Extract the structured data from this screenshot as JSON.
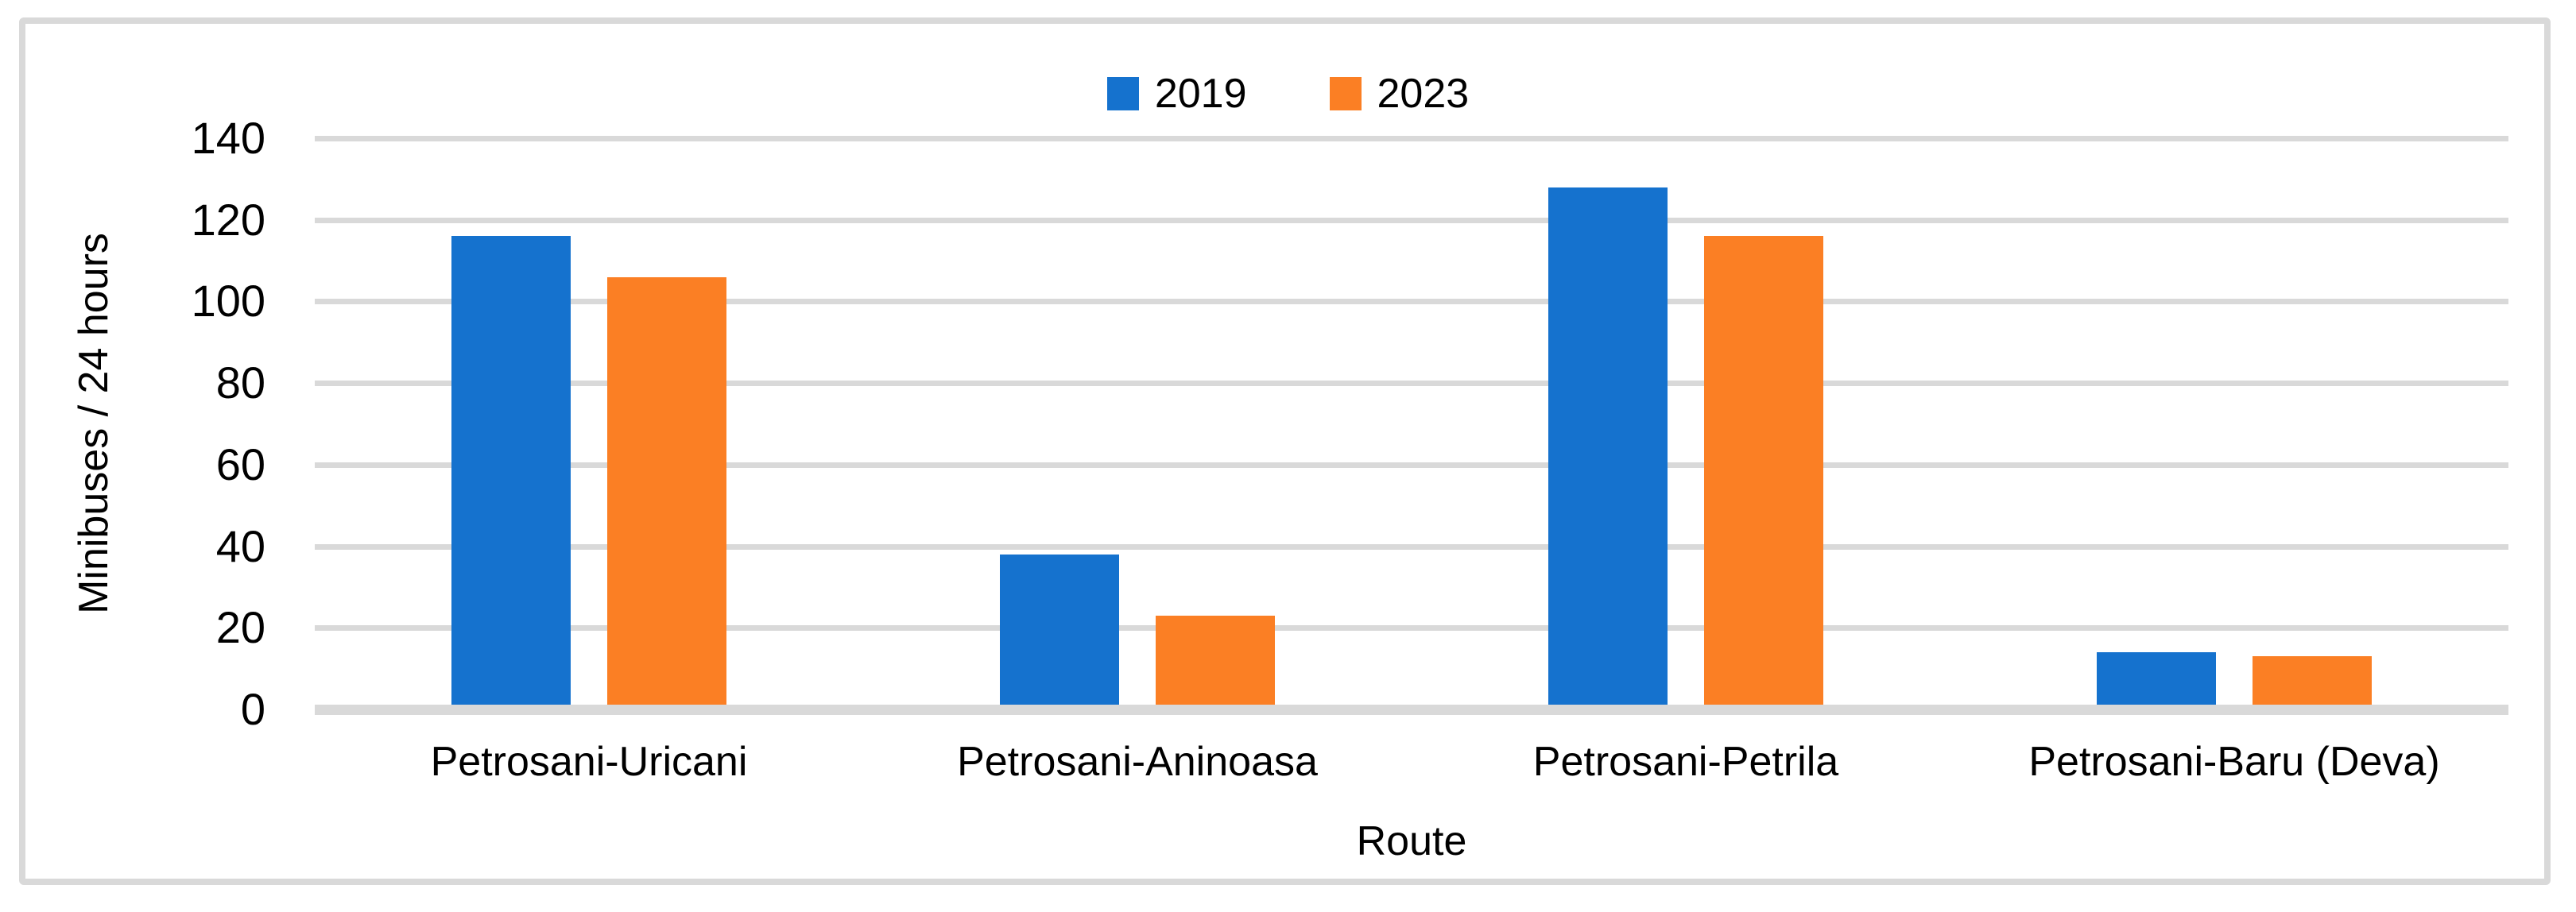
{
  "figure": {
    "background": "#FFFFFF",
    "frame_color": "#D9D9D9"
  },
  "chart_data": {
    "type": "bar",
    "title": "",
    "xlabel": "Route",
    "ylabel": "Minibuses / 24 hours",
    "categories": [
      "Petrosani-Uricani",
      "Petrosani-Aninoasa",
      "Petrosani-Petrila",
      "Petrosani-Baru (Deva)"
    ],
    "series": [
      {
        "name": "2019",
        "color": "#1572CE",
        "values": [
          116,
          38,
          128,
          14
        ]
      },
      {
        "name": "2023",
        "color": "#FB7F24",
        "values": [
          106,
          23,
          116,
          13
        ]
      }
    ],
    "ylim": [
      0,
      140
    ],
    "yticks": [
      0,
      20,
      40,
      60,
      80,
      100,
      120,
      140
    ],
    "grid": true,
    "gridline_color": "#D9D9D9",
    "legend_position": "top-center"
  }
}
